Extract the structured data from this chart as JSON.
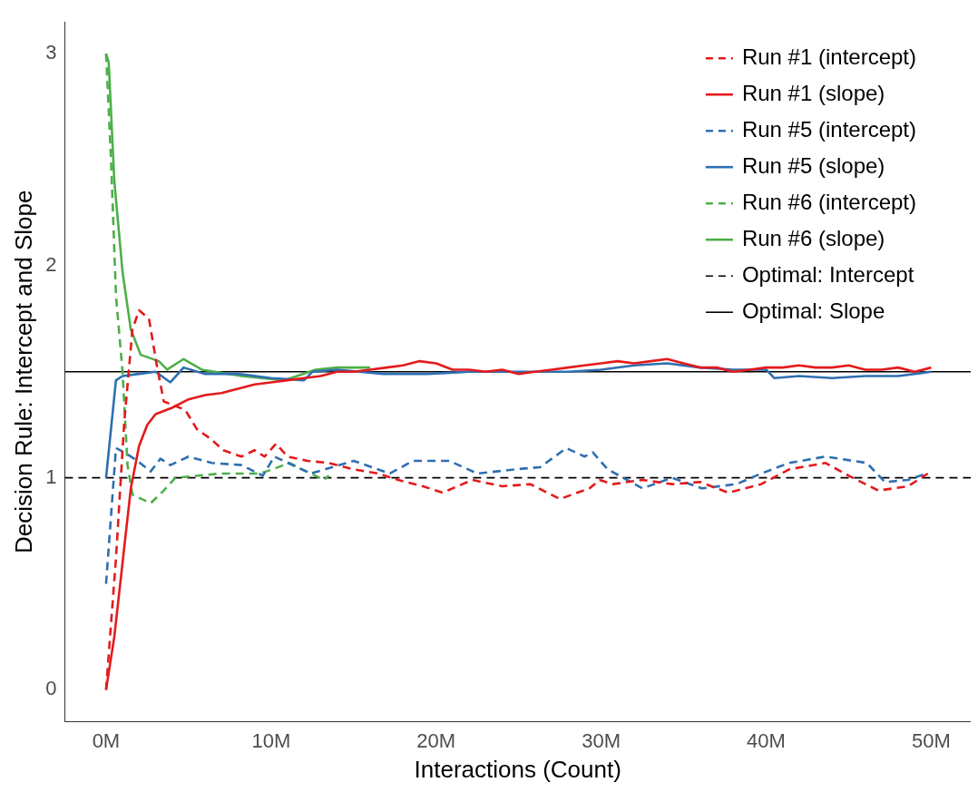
{
  "chart_data": {
    "type": "line",
    "xlabel": "Interactions (Count)",
    "ylabel": "Decision Rule: Intercept and Slope",
    "xlim": [
      -2.5,
      52.4
    ],
    "ylim": [
      -0.15,
      3.15
    ],
    "xticks": [
      {
        "value": 0,
        "label": "0M"
      },
      {
        "value": 10,
        "label": "10M"
      },
      {
        "value": 20,
        "label": "20M"
      },
      {
        "value": 30,
        "label": "30M"
      },
      {
        "value": 40,
        "label": "40M"
      },
      {
        "value": 50,
        "label": "50M"
      }
    ],
    "yticks": [
      0,
      1,
      2,
      3
    ],
    "grid": false,
    "legend": "top right",
    "marker": "none",
    "series": [
      {
        "name": "Run #1 (intercept)",
        "color": "#e41a1c",
        "line_style": "dashed",
        "x": [
          0,
          0.6,
          1.1,
          1.6,
          2.0,
          2.6,
          3.1,
          3.5,
          4.8,
          5.5,
          6.4,
          7.1,
          8.2,
          9.0,
          9.6,
          10.3,
          11,
          12.2,
          13.5,
          15,
          16.5,
          17.7,
          19.2,
          20.4,
          22.2,
          24,
          25.7,
          27.5,
          29.3,
          29.9,
          30.7,
          32.5,
          34.3,
          36,
          37.7,
          39.7,
          41.4,
          43.6,
          45.0,
          46.8,
          48.6,
          49.8
        ],
        "values": [
          0,
          0.62,
          1.26,
          1.7,
          1.79,
          1.75,
          1.52,
          1.36,
          1.32,
          1.23,
          1.18,
          1.13,
          1.1,
          1.13,
          1.1,
          1.16,
          1.1,
          1.08,
          1.07,
          1.04,
          1.02,
          0.99,
          0.96,
          0.93,
          0.99,
          0.96,
          0.97,
          0.9,
          0.95,
          0.99,
          0.97,
          0.99,
          0.97,
          0.98,
          0.93,
          0.97,
          1.04,
          1.07,
          1.01,
          0.94,
          0.96,
          1.02
        ]
      },
      {
        "name": "Run #1 (slope)",
        "color": "#e41a1c",
        "line_style": "solid",
        "x": [
          0,
          0.5,
          1,
          1.5,
          2,
          2.5,
          3,
          4,
          5,
          6,
          7,
          8,
          9,
          10,
          11,
          12,
          13,
          14,
          15,
          16,
          17,
          18,
          19,
          20,
          21,
          22,
          23,
          24,
          25,
          26,
          27,
          28,
          29,
          30,
          31,
          32,
          33,
          34,
          35,
          36,
          37,
          38,
          39,
          40,
          41,
          42,
          43,
          44,
          45,
          46,
          47,
          48,
          49,
          50
        ],
        "values": [
          0,
          0.25,
          0.6,
          0.95,
          1.15,
          1.25,
          1.3,
          1.33,
          1.37,
          1.39,
          1.4,
          1.42,
          1.44,
          1.45,
          1.46,
          1.47,
          1.48,
          1.5,
          1.5,
          1.51,
          1.52,
          1.53,
          1.55,
          1.54,
          1.51,
          1.51,
          1.5,
          1.51,
          1.49,
          1.5,
          1.51,
          1.52,
          1.53,
          1.54,
          1.55,
          1.54,
          1.55,
          1.56,
          1.54,
          1.52,
          1.52,
          1.5,
          1.51,
          1.52,
          1.52,
          1.53,
          1.52,
          1.52,
          1.53,
          1.51,
          1.51,
          1.52,
          1.5,
          1.52
        ]
      },
      {
        "name": "Run #5 (intercept)",
        "color": "#2f6fb0",
        "line_style": "dashed",
        "x": [
          0,
          0.6,
          1.1,
          1.9,
          2.7,
          3.3,
          3.9,
          5.0,
          6.4,
          8.2,
          9.5,
          10.2,
          12.4,
          15.0,
          17.2,
          18.6,
          20.8,
          22.5,
          24.8,
          26.3,
          27.9,
          29.0,
          29.5,
          30.4,
          32.5,
          34.3,
          36.1,
          38.2,
          39.7,
          41.4,
          43.6,
          46.1,
          47.2,
          48.6,
          49.7
        ],
        "values": [
          0.5,
          1.14,
          1.12,
          1.08,
          1.03,
          1.09,
          1.06,
          1.1,
          1.07,
          1.06,
          1.01,
          1.1,
          1.02,
          1.08,
          1.02,
          1.08,
          1.08,
          1.02,
          1.04,
          1.05,
          1.14,
          1.1,
          1.12,
          1.04,
          0.95,
          1.0,
          0.95,
          0.97,
          1.02,
          1.07,
          1.1,
          1.07,
          0.98,
          0.99,
          1.02
        ]
      },
      {
        "name": "Run #5 (slope)",
        "color": "#2f6fb0",
        "line_style": "solid",
        "x": [
          0,
          0.6,
          1,
          2,
          3,
          3.9,
          4.7,
          6,
          8,
          10,
          12,
          12.5,
          14,
          16.8,
          19.5,
          22,
          25,
          28,
          30,
          32,
          34,
          36,
          38,
          40,
          40.5,
          42,
          44,
          46,
          48,
          50
        ],
        "values": [
          1.0,
          1.46,
          1.48,
          1.49,
          1.5,
          1.45,
          1.52,
          1.49,
          1.49,
          1.47,
          1.46,
          1.5,
          1.51,
          1.49,
          1.49,
          1.5,
          1.5,
          1.5,
          1.51,
          1.53,
          1.54,
          1.52,
          1.51,
          1.51,
          1.47,
          1.48,
          1.47,
          1.48,
          1.48,
          1.5
        ]
      },
      {
        "name": "Run #6 (intercept)",
        "color": "#4daf4a",
        "line_style": "dashed",
        "x": [
          0,
          0.3,
          0.6,
          1.0,
          1.3,
          1.6,
          2.7,
          3.5,
          4.2,
          5.6,
          6.9,
          9.3,
          10.1,
          11.1,
          13.2,
          13.5
        ],
        "values": [
          3.0,
          2.5,
          1.86,
          1.5,
          1.06,
          0.92,
          0.88,
          0.94,
          1.0,
          1.01,
          1.02,
          1.02,
          1.04,
          1.07,
          0.99,
          1.01
        ]
      },
      {
        "name": "Run #6 (slope)",
        "color": "#4daf4a",
        "line_style": "solid",
        "x": [
          0,
          0.16,
          0.5,
          1.0,
          1.5,
          2.1,
          3.2,
          3.7,
          4.7,
          5.8,
          8.2,
          10.8,
          12.7,
          14,
          16
        ],
        "values": [
          3.0,
          2.96,
          2.4,
          1.97,
          1.7,
          1.58,
          1.55,
          1.51,
          1.56,
          1.51,
          1.48,
          1.46,
          1.51,
          1.52,
          1.52
        ]
      }
    ],
    "ref_lines": [
      {
        "axis": "y",
        "value": 1,
        "label": "Optimal: Intercept",
        "color": "#000000",
        "line_style": "dashed"
      },
      {
        "axis": "y",
        "value": 1.5,
        "label": "Optimal: Slope",
        "color": "#000000",
        "line_style": "solid"
      }
    ]
  }
}
